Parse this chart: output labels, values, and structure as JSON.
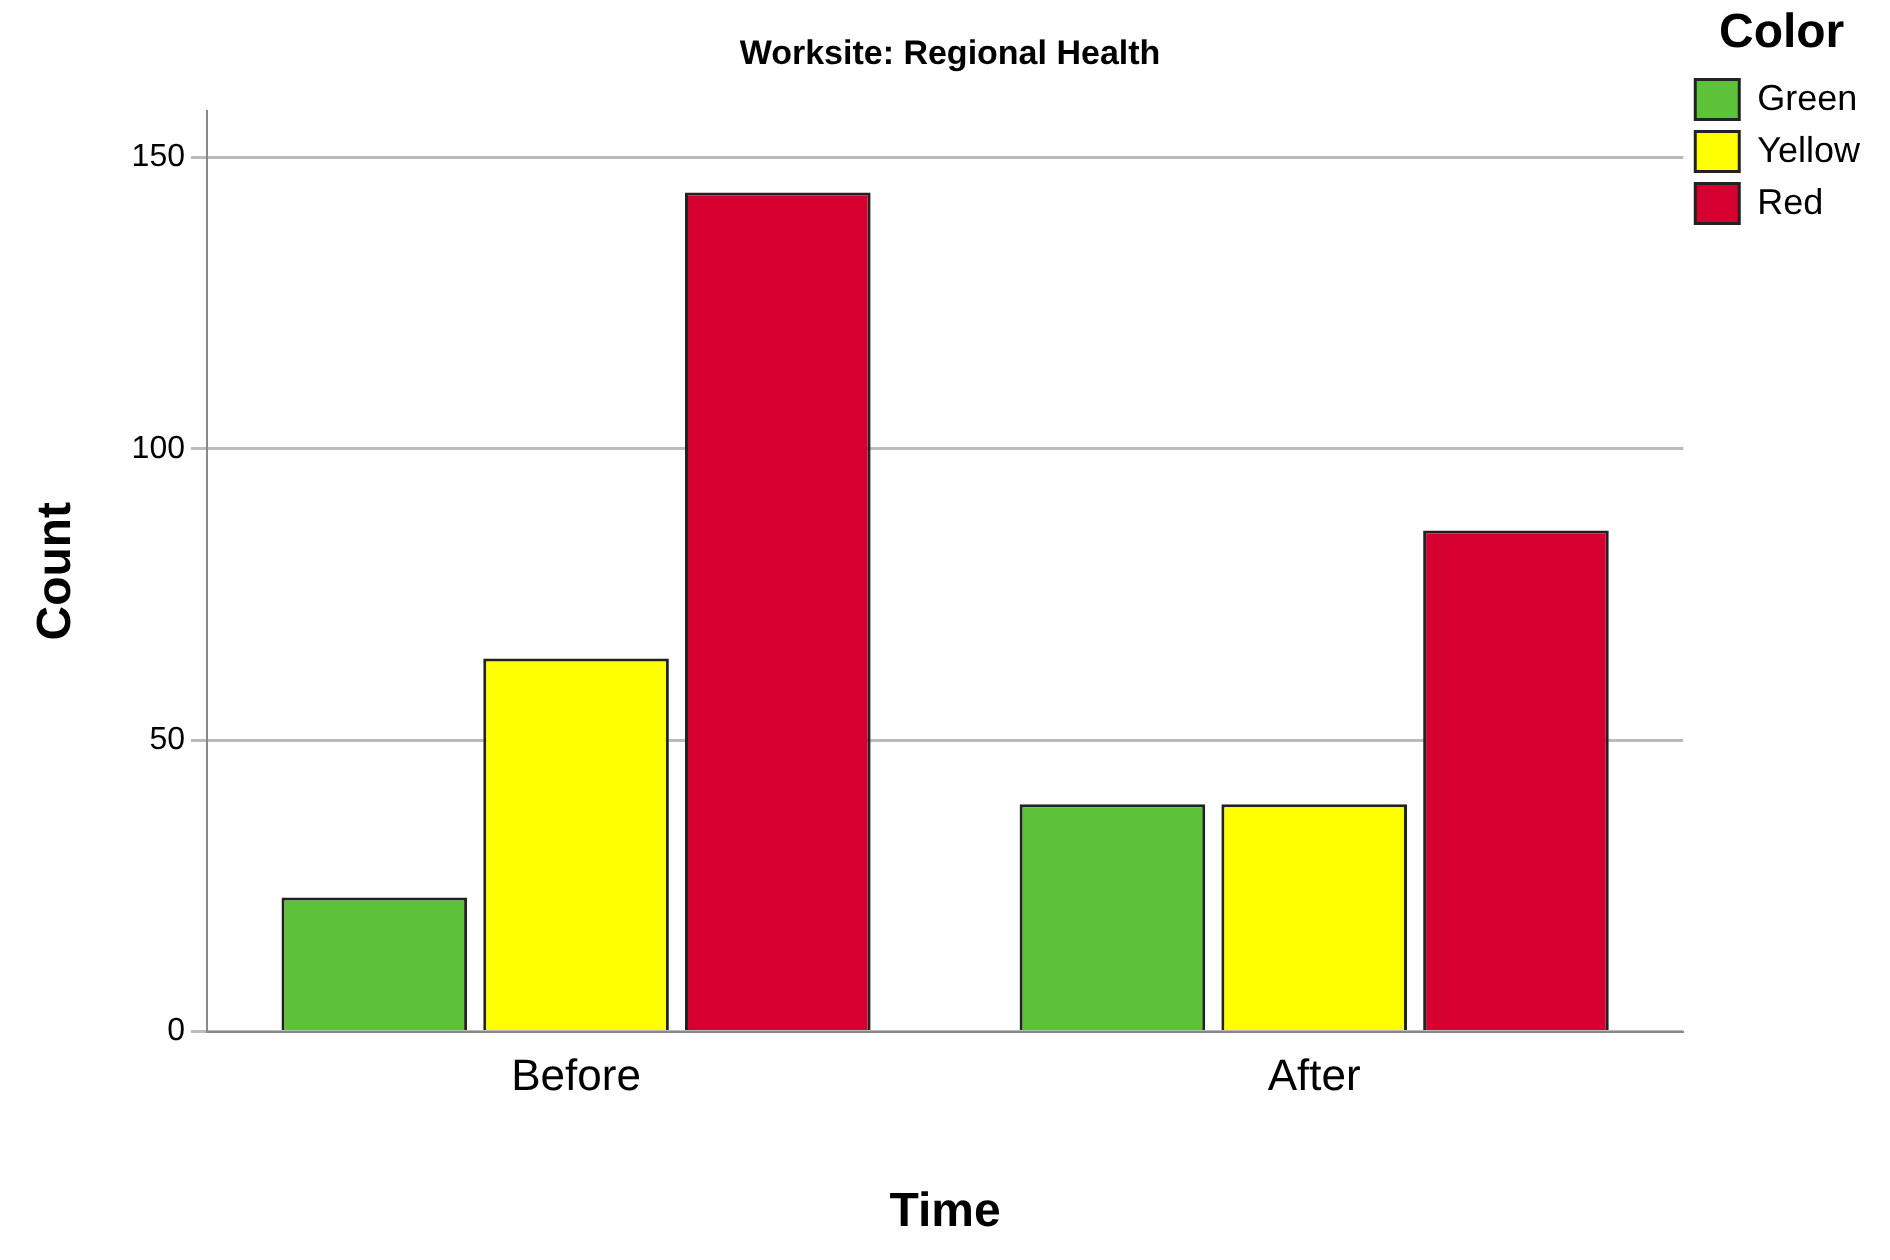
{
  "chart_data": {
    "type": "bar",
    "title": "Worksite: Regional Health",
    "xlabel": "Time",
    "ylabel": "Count",
    "legend_title": "Color",
    "categories": [
      "Before",
      "After"
    ],
    "series": [
      {
        "name": "Green",
        "color": "#5ec13a",
        "values": [
          23,
          39
        ]
      },
      {
        "name": "Yellow",
        "color": "#ffff00",
        "values": [
          64,
          39
        ]
      },
      {
        "name": "Red",
        "color": "#d5002f",
        "values": [
          144,
          86
        ]
      }
    ],
    "ylim": [
      0,
      158
    ],
    "yticks": [
      0,
      50,
      100,
      150
    ],
    "grid": "y",
    "legend": "top right"
  }
}
